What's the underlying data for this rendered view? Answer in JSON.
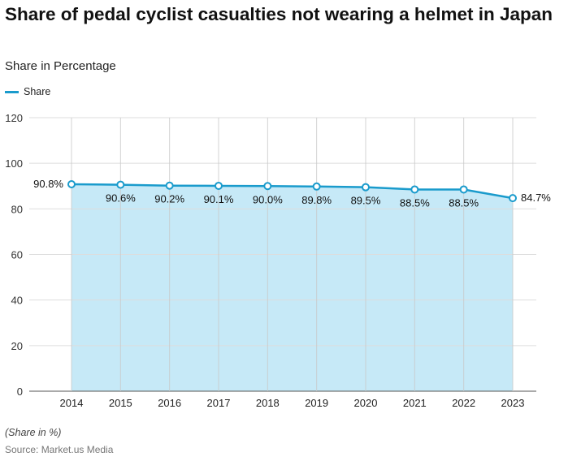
{
  "title": "Share of pedal cyclist casualties not wearing a helmet in Japan",
  "subtitle": "Share in Percentage",
  "note": "(Share in %)",
  "source": "Source: Market.us Media",
  "colors": {
    "line": "#1a9bcc",
    "fill": "#c6e9f7",
    "grid": "#dddddd"
  },
  "chart_data": {
    "type": "area",
    "categories": [
      "2014",
      "2015",
      "2016",
      "2017",
      "2018",
      "2019",
      "2020",
      "2021",
      "2022",
      "2023"
    ],
    "series": [
      {
        "name": "Share",
        "values": [
          90.8,
          90.6,
          90.2,
          90.1,
          90.0,
          89.8,
          89.5,
          88.5,
          88.5,
          84.7
        ]
      }
    ],
    "data_labels": [
      "90.8%",
      "90.6%",
      "90.2%",
      "90.1%",
      "90.0%",
      "89.8%",
      "89.5%",
      "88.5%",
      "88.5%",
      "84.7%"
    ],
    "ylim": [
      0,
      120
    ],
    "yticks": [
      0,
      20,
      40,
      60,
      80,
      100,
      120
    ],
    "grid": true,
    "legend": "top-left"
  }
}
